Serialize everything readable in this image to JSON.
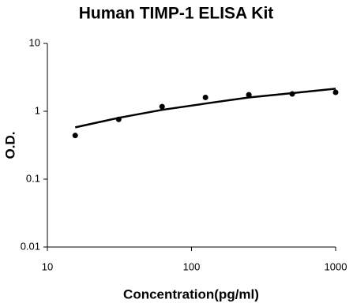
{
  "chart_data": {
    "type": "scatter",
    "title": "Human TIMP-1 ELISA Kit",
    "x_label": "Concentration(pg/ml)",
    "y_label": "O.D.",
    "xscale": "log",
    "yscale": "log",
    "xlim": [
      10,
      1000
    ],
    "ylim": [
      0.01,
      10
    ],
    "xticks": [
      10,
      100,
      1000
    ],
    "yticks": [
      0.01,
      0.1,
      1,
      10
    ],
    "grid": false,
    "series": [
      {
        "type": "scatter",
        "color": "#000000",
        "x": [
          15.6,
          31.25,
          62.5,
          125,
          250,
          500,
          1000
        ],
        "values": [
          0.44,
          0.76,
          1.17,
          1.6,
          1.75,
          1.8,
          1.9
        ]
      },
      {
        "type": "line",
        "color": "#000000",
        "x": [
          15.6,
          31.25,
          62.5,
          125,
          250,
          500,
          1000
        ],
        "values": [
          0.58,
          0.8,
          1.05,
          1.3,
          1.6,
          1.85,
          2.15
        ]
      }
    ]
  }
}
